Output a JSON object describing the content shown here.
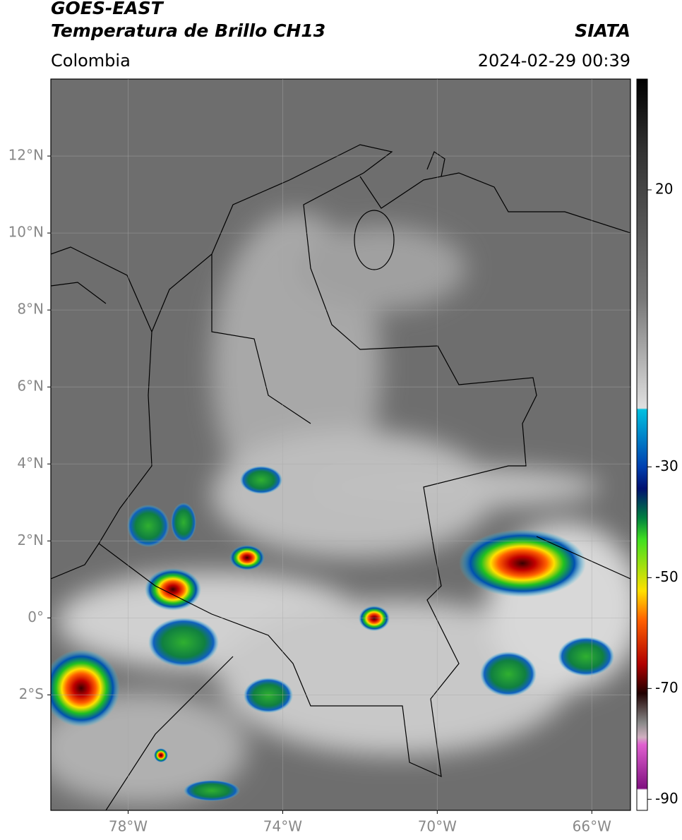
{
  "header": {
    "title": "GOES-EAST",
    "subtitle": "Temperatura de Brillo CH13",
    "region": "Colombia",
    "source": "SIATA",
    "timestamp": "2024-02-29 00:39"
  },
  "map": {
    "lonlim": [
      -80,
      -65
    ],
    "latlim": [
      -5,
      14
    ],
    "lon_ticks": [
      {
        "value": -78,
        "label": "78°W"
      },
      {
        "value": -74,
        "label": "74°W"
      },
      {
        "value": -70,
        "label": "70°W"
      },
      {
        "value": -66,
        "label": "66°W"
      }
    ],
    "lat_ticks": [
      {
        "value": 12,
        "label": "12°N"
      },
      {
        "value": 10,
        "label": "10°N"
      },
      {
        "value": 8,
        "label": "8°N"
      },
      {
        "value": 6,
        "label": "6°N"
      },
      {
        "value": 4,
        "label": "4°N"
      },
      {
        "value": 2,
        "label": "2°N"
      },
      {
        "value": 0,
        "label": "0°"
      },
      {
        "value": -2,
        "label": "2°S"
      }
    ]
  },
  "colorbar": {
    "lim": [
      -92,
      40
    ],
    "ticks": [
      20,
      -30,
      -50,
      -70,
      -90
    ]
  }
}
